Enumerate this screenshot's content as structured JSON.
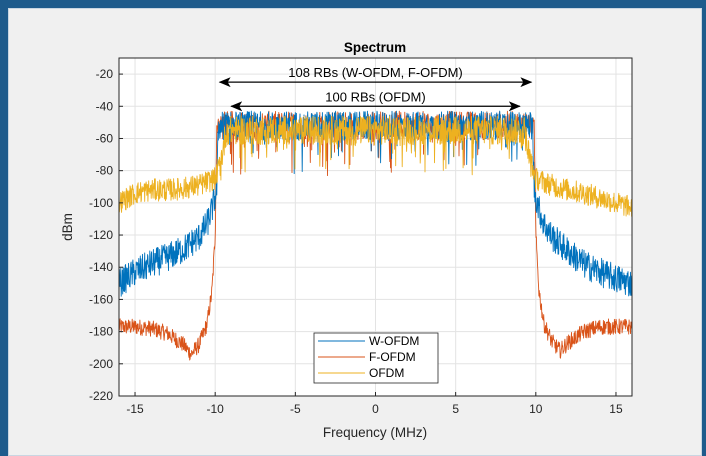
{
  "chart_data": {
    "type": "line",
    "title": "Spectrum",
    "xlabel": "Frequency (MHz)",
    "ylabel": "dBm",
    "xlim": [
      -16,
      16
    ],
    "ylim": [
      -220,
      -10
    ],
    "xticks": [
      -15,
      -10,
      -5,
      0,
      5,
      10,
      15
    ],
    "yticks": [
      -20,
      -40,
      -60,
      -80,
      -100,
      -120,
      -140,
      -160,
      -180,
      -200,
      -220
    ],
    "grid": true,
    "legend_position": "bottom-center",
    "series": [
      {
        "name": "W-OFDM",
        "color": "#0072bd",
        "x": [
          -16,
          -15,
          -14,
          -13,
          -12,
          -11,
          -10.5,
          -10.2,
          -9.9,
          -9.8,
          9.8,
          9.9,
          10.2,
          10.5,
          11,
          12,
          13,
          14,
          15,
          16
        ],
        "y": [
          -150,
          -143,
          -138,
          -134,
          -129,
          -121,
          -113,
          -104,
          -92,
          -52,
          -52,
          -92,
          -104,
          -113,
          -121,
          -130,
          -138,
          -143,
          -147,
          -150
        ]
      },
      {
        "name": "F-OFDM",
        "color": "#d95319",
        "x": [
          -16,
          -15,
          -14,
          -13,
          -12,
          -11.5,
          -11,
          -10.5,
          -10.2,
          -10,
          -9.9,
          9.9,
          10,
          10.2,
          10.5,
          11,
          11.5,
          12,
          13,
          14,
          15,
          16
        ],
        "y": [
          -177,
          -177,
          -178,
          -181,
          -188,
          -194,
          -188,
          -175,
          -155,
          -120,
          -52,
          -52,
          -120,
          -155,
          -175,
          -186,
          -192,
          -187,
          -180,
          -177,
          -177,
          -177
        ]
      },
      {
        "name": "OFDM",
        "color": "#edb120",
        "x": [
          -16,
          -15,
          -14,
          -13,
          -12,
          -11,
          -10,
          -9.6,
          -9.3,
          9.3,
          9.6,
          10,
          11,
          12,
          13,
          14,
          15,
          16
        ],
        "y": [
          -100,
          -94,
          -92,
          -92,
          -91,
          -89,
          -85,
          -72,
          -55,
          -55,
          -72,
          -85,
          -89,
          -92,
          -94,
          -97,
          -100,
          -103
        ]
      }
    ],
    "annotations": [
      {
        "text": "108 RBs (W-OFDM, F-OFDM)",
        "x_start": -9.72,
        "x_end": 9.72,
        "y": -25
      },
      {
        "text": "100 RBs (OFDM)",
        "x_start": -9.0,
        "x_end": 9.0,
        "y": -40
      }
    ]
  }
}
